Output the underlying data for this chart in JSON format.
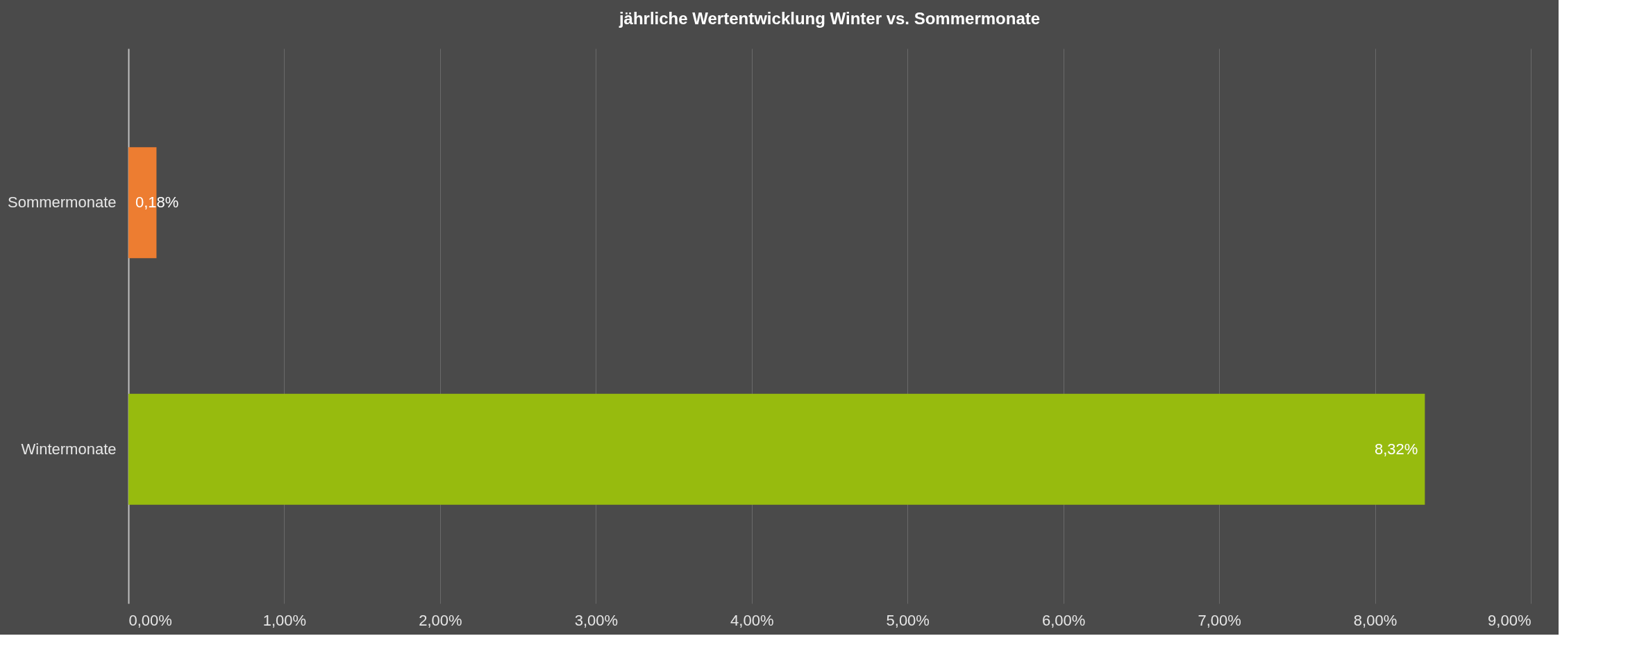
{
  "chart_data": {
    "type": "bar",
    "orientation": "horizontal",
    "title": "jährliche Wertentwicklung Winter vs. Sommermonate",
    "categories": [
      "Sommermonate",
      "Wintermonate"
    ],
    "values": [
      0.18,
      8.32
    ],
    "colors": [
      "#ed7d31",
      "#97bb0e"
    ],
    "value_labels": [
      "0,18%",
      "8,32%"
    ],
    "xlim": [
      0,
      9
    ],
    "xticks": [
      {
        "value": 0,
        "label": "0,00%"
      },
      {
        "value": 1,
        "label": "1,00%"
      },
      {
        "value": 2,
        "label": "2,00%"
      },
      {
        "value": 3,
        "label": "3,00%"
      },
      {
        "value": 4,
        "label": "4,00%"
      },
      {
        "value": 5,
        "label": "5,00%"
      },
      {
        "value": 6,
        "label": "6,00%"
      },
      {
        "value": 7,
        "label": "7,00%"
      },
      {
        "value": 8,
        "label": "8,00%"
      },
      {
        "value": 9,
        "label": "9,00%"
      }
    ],
    "grid": "x"
  }
}
